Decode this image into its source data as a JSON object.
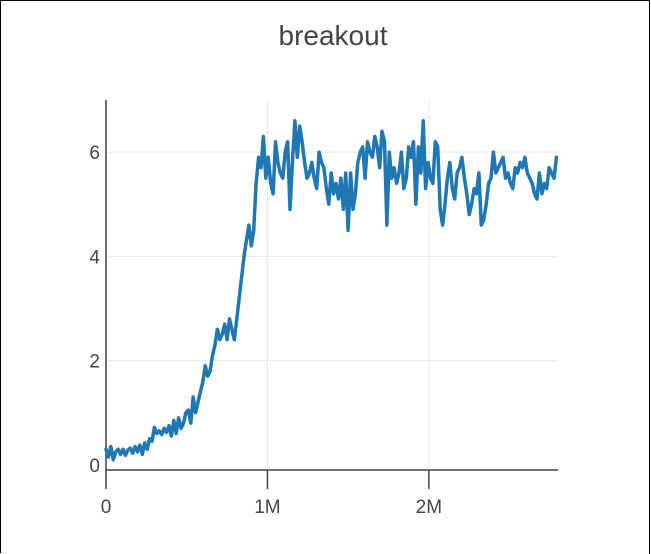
{
  "chart_data": {
    "type": "line",
    "title": "breakout",
    "xlabel": "",
    "ylabel": "",
    "xlim": [
      0,
      2800000
    ],
    "ylim": [
      -0.1,
      7.0
    ],
    "x_ticks": [
      {
        "value": 0,
        "label": "0"
      },
      {
        "value": 1000000,
        "label": "1M"
      },
      {
        "value": 2000000,
        "label": "2M"
      }
    ],
    "y_ticks": [
      {
        "value": 0,
        "label": "0"
      },
      {
        "value": 2,
        "label": "2"
      },
      {
        "value": 4,
        "label": "4"
      },
      {
        "value": 6,
        "label": "6"
      }
    ],
    "grid": true,
    "line_color": "#1f77b4",
    "series": [
      {
        "name": "breakout",
        "x": [
          0,
          15000,
          30000,
          45000,
          60000,
          75000,
          90000,
          105000,
          120000,
          135000,
          150000,
          165000,
          180000,
          195000,
          210000,
          225000,
          240000,
          255000,
          270000,
          285000,
          300000,
          315000,
          330000,
          345000,
          360000,
          375000,
          390000,
          405000,
          420000,
          435000,
          450000,
          465000,
          480000,
          495000,
          510000,
          525000,
          540000,
          555000,
          570000,
          585000,
          600000,
          615000,
          630000,
          645000,
          660000,
          675000,
          690000,
          705000,
          720000,
          735000,
          750000,
          765000,
          780000,
          795000,
          810000,
          825000,
          840000,
          855000,
          870000,
          885000,
          900000,
          915000,
          930000,
          945000,
          960000,
          975000,
          990000,
          1005000,
          1020000,
          1035000,
          1050000,
          1065000,
          1080000,
          1095000,
          1110000,
          1125000,
          1140000,
          1155000,
          1170000,
          1185000,
          1200000,
          1215000,
          1230000,
          1245000,
          1260000,
          1275000,
          1290000,
          1305000,
          1320000,
          1335000,
          1350000,
          1365000,
          1380000,
          1395000,
          1410000,
          1425000,
          1440000,
          1455000,
          1470000,
          1485000,
          1500000,
          1515000,
          1530000,
          1545000,
          1560000,
          1575000,
          1590000,
          1605000,
          1620000,
          1635000,
          1650000,
          1665000,
          1680000,
          1695000,
          1710000,
          1725000,
          1740000,
          1755000,
          1770000,
          1785000,
          1800000,
          1815000,
          1830000,
          1845000,
          1860000,
          1875000,
          1890000,
          1905000,
          1920000,
          1935000,
          1950000,
          1965000,
          1980000,
          1995000,
          2010000,
          2025000,
          2040000,
          2055000,
          2070000,
          2085000,
          2100000,
          2115000,
          2130000,
          2145000,
          2160000,
          2175000,
          2190000,
          2205000,
          2220000,
          2235000,
          2250000,
          2265000,
          2280000,
          2295000,
          2310000,
          2325000,
          2340000,
          2355000,
          2370000,
          2385000,
          2400000,
          2415000,
          2430000,
          2445000,
          2460000,
          2475000,
          2490000,
          2505000,
          2520000,
          2535000,
          2550000,
          2565000,
          2580000,
          2595000,
          2610000,
          2625000,
          2640000,
          2655000,
          2670000,
          2685000,
          2700000,
          2715000,
          2730000,
          2745000,
          2760000,
          2775000,
          2790000
        ],
        "y": [
          0.3,
          0.15,
          0.35,
          0.1,
          0.25,
          0.3,
          0.2,
          0.3,
          0.18,
          0.28,
          0.32,
          0.22,
          0.35,
          0.25,
          0.38,
          0.2,
          0.42,
          0.3,
          0.5,
          0.45,
          0.72,
          0.6,
          0.65,
          0.58,
          0.7,
          0.62,
          0.75,
          0.55,
          0.85,
          0.6,
          0.9,
          0.7,
          0.8,
          1.0,
          1.05,
          0.8,
          1.3,
          1.0,
          1.2,
          1.4,
          1.6,
          1.9,
          1.7,
          1.8,
          2.1,
          2.3,
          2.6,
          2.4,
          2.5,
          2.7,
          2.4,
          2.8,
          2.6,
          2.4,
          2.8,
          3.2,
          3.6,
          4.0,
          4.3,
          4.6,
          4.2,
          4.5,
          5.4,
          5.9,
          5.7,
          6.3,
          5.5,
          5.9,
          5.4,
          5.2,
          6.2,
          5.8,
          5.6,
          5.5,
          6.0,
          6.2,
          4.9,
          5.8,
          6.6,
          5.9,
          6.5,
          6.2,
          5.8,
          5.5,
          5.6,
          5.8,
          5.5,
          5.3,
          6.0,
          5.8,
          5.7,
          5.3,
          5.0,
          5.6,
          5.2,
          5.4,
          5.1,
          5.5,
          4.9,
          5.6,
          4.5,
          5.6,
          4.9,
          5.2,
          5.8,
          6.0,
          6.1,
          5.5,
          6.2,
          6.0,
          5.9,
          6.3,
          6.1,
          5.7,
          6.4,
          6.2,
          4.6,
          6.0,
          5.5,
          5.7,
          5.4,
          5.6,
          6.0,
          5.3,
          5.5,
          6.1,
          5.9,
          6.2,
          5.0,
          6.1,
          5.6,
          6.6,
          5.3,
          5.8,
          5.5,
          5.4,
          6.2,
          6.1,
          4.9,
          4.6,
          5.0,
          5.5,
          5.8,
          5.3,
          5.1,
          5.6,
          5.7,
          5.9,
          5.5,
          5.2,
          4.8,
          5.0,
          5.3,
          5.2,
          5.6,
          4.6,
          4.7,
          5.0,
          5.4,
          5.5,
          6.0,
          5.6,
          5.7,
          5.8,
          5.9,
          5.5,
          5.6,
          5.4,
          5.3,
          5.7,
          5.6,
          5.8,
          5.7,
          5.9,
          5.6,
          5.5,
          5.4,
          5.2,
          5.1,
          5.6,
          5.2,
          5.4,
          5.3,
          5.7,
          5.6,
          5.5,
          5.9
        ]
      }
    ]
  }
}
